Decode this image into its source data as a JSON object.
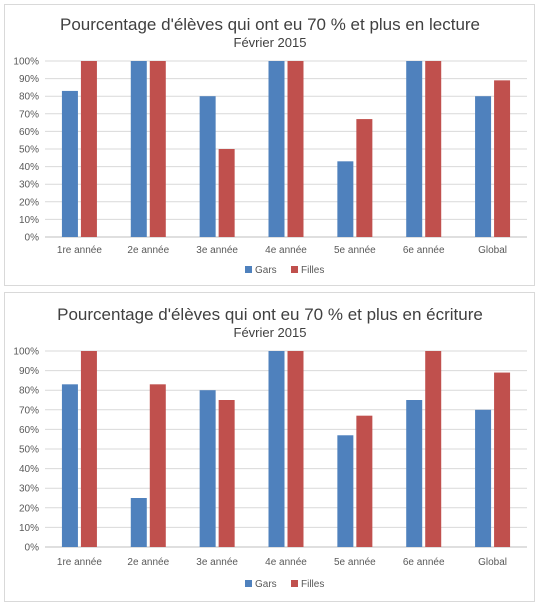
{
  "chart_data": [
    {
      "type": "bar",
      "title": "Pourcentage d'élèves qui ont eu 70 % et plus en lecture",
      "subtitle": "Février 2015",
      "categories": [
        "1re année",
        "2e année",
        "3e année",
        "4e année",
        "5e année",
        "6e année",
        "Global"
      ],
      "series": [
        {
          "name": "Gars",
          "color": "#4f81bd",
          "values": [
            83,
            100,
            80,
            100,
            43,
            100,
            80
          ]
        },
        {
          "name": "Filles",
          "color": "#c0504d",
          "values": [
            100,
            100,
            50,
            100,
            67,
            100,
            89
          ]
        }
      ],
      "ylim": [
        0,
        100
      ],
      "yticks": [
        "0%",
        "10%",
        "20%",
        "30%",
        "40%",
        "50%",
        "60%",
        "70%",
        "80%",
        "90%",
        "100%"
      ],
      "grid": true,
      "legend": "bottom"
    },
    {
      "type": "bar",
      "title": "Pourcentage d'élèves qui ont eu 70 % et plus en écriture",
      "subtitle": "Février 2015",
      "categories": [
        "1re année",
        "2e année",
        "3e année",
        "4e année",
        "5e année",
        "6e année",
        "Global"
      ],
      "series": [
        {
          "name": "Gars",
          "color": "#4f81bd",
          "values": [
            83,
            25,
            80,
            100,
            57,
            75,
            70
          ]
        },
        {
          "name": "Filles",
          "color": "#c0504d",
          "values": [
            100,
            83,
            75,
            100,
            67,
            100,
            89
          ]
        }
      ],
      "ylim": [
        0,
        100
      ],
      "yticks": [
        "0%",
        "10%",
        "20%",
        "30%",
        "40%",
        "50%",
        "60%",
        "70%",
        "80%",
        "90%",
        "100%"
      ],
      "grid": true,
      "legend": "bottom"
    }
  ]
}
